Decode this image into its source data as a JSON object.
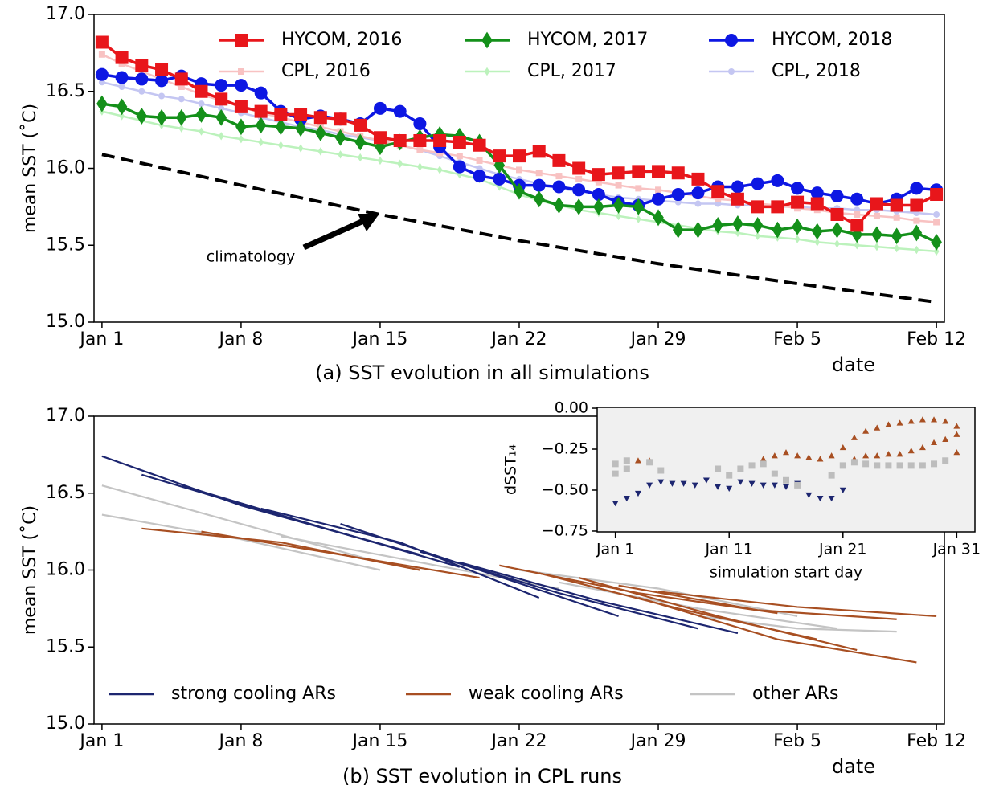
{
  "chart_data": [
    {
      "type": "line",
      "title": "(a) SST evolution in all simulations",
      "xlabel": "date",
      "ylabel": "mean SST (˚C)",
      "xlim": [
        -0.4,
        42.4
      ],
      "ylim": [
        15,
        17
      ],
      "xticks": [
        {
          "value": 0,
          "label": "Jan 1"
        },
        {
          "value": 7,
          "label": "Jan 8"
        },
        {
          "value": 14,
          "label": "Jan 15"
        },
        {
          "value": 21,
          "label": "Jan 22"
        },
        {
          "value": 28,
          "label": "Jan 29"
        },
        {
          "value": 35,
          "label": "Feb 5"
        },
        {
          "value": 42,
          "label": "Feb 12"
        }
      ],
      "yticks": [
        {
          "value": 15,
          "label": "15.0"
        },
        15.5,
        {
          "value": 16,
          "label": "16.0"
        },
        16.5,
        {
          "value": 17,
          "label": "17.0"
        }
      ],
      "legend": "upper center",
      "x": [
        0,
        1,
        2,
        3,
        4,
        5,
        6,
        7,
        8,
        9,
        10,
        11,
        12,
        13,
        14,
        15,
        16,
        17,
        18,
        19,
        20,
        21,
        22,
        23,
        24,
        25,
        26,
        27,
        28,
        29,
        30,
        31,
        32,
        33,
        34,
        35,
        36,
        37,
        38,
        39,
        40,
        41,
        42
      ],
      "series": [
        {
          "name": "HYCOM, 2016",
          "color": "#e8161b",
          "marker": "s",
          "values": [
            16.82,
            16.72,
            16.67,
            16.64,
            16.58,
            16.5,
            16.45,
            16.4,
            16.37,
            16.35,
            16.35,
            16.33,
            16.32,
            16.28,
            16.2,
            16.18,
            16.18,
            16.18,
            16.17,
            16.15,
            16.08,
            16.08,
            16.11,
            16.05,
            16.0,
            15.96,
            15.97,
            15.98,
            15.98,
            15.97,
            15.93,
            15.85,
            15.8,
            15.75,
            15.75,
            15.78,
            15.77,
            15.7,
            15.63,
            15.77,
            15.76,
            15.76,
            15.83
          ]
        },
        {
          "name": "HYCOM, 2017",
          "color": "#14901a",
          "marker": "D",
          "values": [
            16.42,
            16.4,
            16.34,
            16.33,
            16.33,
            16.35,
            16.33,
            16.27,
            16.28,
            16.27,
            16.26,
            16.23,
            16.2,
            16.17,
            16.14,
            16.17,
            16.2,
            16.22,
            16.21,
            16.17,
            16.02,
            15.85,
            15.8,
            15.76,
            15.75,
            15.75,
            15.76,
            15.75,
            15.68,
            15.6,
            15.6,
            15.63,
            15.64,
            15.63,
            15.6,
            15.62,
            15.59,
            15.6,
            15.57,
            15.57,
            15.56,
            15.58,
            15.52
          ]
        },
        {
          "name": "HYCOM, 2018",
          "color": "#0d17e3",
          "marker": "o",
          "values": [
            16.61,
            16.59,
            16.58,
            16.57,
            16.6,
            16.55,
            16.54,
            16.54,
            16.49,
            16.37,
            16.32,
            16.34,
            16.32,
            16.29,
            16.39,
            16.37,
            16.29,
            16.14,
            16.01,
            15.95,
            15.93,
            15.89,
            15.89,
            15.88,
            15.86,
            15.83,
            15.78,
            15.76,
            15.8,
            15.83,
            15.84,
            15.88,
            15.88,
            15.9,
            15.92,
            15.87,
            15.84,
            15.82,
            15.8,
            15.77,
            15.8,
            15.87,
            15.86
          ]
        },
        {
          "name": "CPL, 2016",
          "color": "#f8c2c2",
          "marker": "s",
          "values": [
            16.74,
            16.68,
            16.63,
            16.58,
            16.53,
            16.48,
            16.44,
            16.4,
            16.36,
            16.33,
            16.3,
            16.27,
            16.24,
            16.21,
            16.18,
            16.15,
            16.12,
            16.1,
            16.08,
            16.05,
            16.02,
            15.99,
            15.97,
            15.95,
            15.93,
            15.91,
            15.89,
            15.87,
            15.86,
            15.84,
            15.82,
            15.8,
            15.79,
            15.77,
            15.76,
            15.74,
            15.73,
            15.71,
            15.7,
            15.69,
            15.68,
            15.66,
            15.65
          ]
        },
        {
          "name": "CPL, 2017",
          "color": "#bcf2bc",
          "marker": "D",
          "values": [
            16.37,
            16.34,
            16.31,
            16.28,
            16.26,
            16.24,
            16.21,
            16.19,
            16.17,
            16.15,
            16.13,
            16.11,
            16.09,
            16.07,
            16.05,
            16.03,
            16.01,
            15.99,
            15.96,
            15.93,
            15.88,
            15.83,
            15.79,
            15.76,
            15.73,
            15.71,
            15.69,
            15.67,
            15.65,
            15.63,
            15.61,
            15.59,
            15.58,
            15.56,
            15.55,
            15.54,
            15.52,
            15.51,
            15.5,
            15.49,
            15.48,
            15.47,
            15.46
          ]
        },
        {
          "name": "CPL, 2018",
          "color": "#c4c6f2",
          "marker": "o",
          "values": [
            16.56,
            16.53,
            16.5,
            16.47,
            16.45,
            16.42,
            16.39,
            16.36,
            16.33,
            16.3,
            16.27,
            16.25,
            16.22,
            16.2,
            16.18,
            16.15,
            16.12,
            16.08,
            16.04,
            16.0,
            15.96,
            15.93,
            15.9,
            15.87,
            15.85,
            15.83,
            15.81,
            15.8,
            15.79,
            15.78,
            15.77,
            15.77,
            15.76,
            15.76,
            15.75,
            15.75,
            15.74,
            15.74,
            15.73,
            15.73,
            15.72,
            15.71,
            15.7
          ]
        }
      ],
      "climatology": {
        "label": "climatology",
        "x": [
          0,
          7,
          14,
          21,
          28,
          35,
          42
        ],
        "values": [
          16.09,
          15.89,
          15.7,
          15.53,
          15.38,
          15.25,
          15.13
        ]
      }
    },
    {
      "type": "line",
      "title": "(b) SST evolution in CPL runs",
      "xlabel": "date",
      "ylabel": "mean SST (˚C)",
      "xlim": [
        -0.4,
        42.4
      ],
      "ylim": [
        15,
        17
      ],
      "xticks": [
        {
          "value": 0,
          "label": "Jan 1"
        },
        {
          "value": 7,
          "label": "Jan 8"
        },
        {
          "value": 14,
          "label": "Jan 15"
        },
        {
          "value": 21,
          "label": "Jan 22"
        },
        {
          "value": 28,
          "label": "Jan 29"
        },
        {
          "value": 35,
          "label": "Feb 5"
        },
        {
          "value": 42,
          "label": "Feb 12"
        }
      ],
      "yticks": [
        {
          "value": 15,
          "label": "15.0"
        },
        15.5,
        {
          "value": 16,
          "label": "16.0"
        },
        16.5,
        {
          "value": 17,
          "label": "17.0"
        }
      ],
      "legend": "lower center",
      "series": [
        {
          "name": "strong cooling ARs",
          "color": "#1d2670",
          "runs": [
            {
              "x": [
                0,
                7,
                14
              ],
              "values": [
                16.74,
                16.42,
                16.17
              ]
            },
            {
              "x": [
                2,
                9,
                16
              ],
              "values": [
                16.62,
                16.35,
                16.1
              ]
            },
            {
              "x": [
                4,
                11,
                18
              ],
              "values": [
                16.55,
                16.28,
                16.02
              ]
            },
            {
              "x": [
                8,
                15,
                22
              ],
              "values": [
                16.4,
                16.18,
                15.82
              ]
            },
            {
              "x": [
                12,
                19,
                26
              ],
              "values": [
                16.3,
                16.0,
                15.7
              ]
            },
            {
              "x": [
                16,
                23,
                30
              ],
              "values": [
                16.12,
                15.85,
                15.62
              ]
            },
            {
              "x": [
                18,
                25,
                32
              ],
              "values": [
                16.05,
                15.8,
                15.59
              ]
            }
          ]
        },
        {
          "name": "weak cooling ARs",
          "color": "#a84f22",
          "runs": [
            {
              "x": [
                2,
                9,
                16
              ],
              "values": [
                16.27,
                16.18,
                16.0
              ]
            },
            {
              "x": [
                5,
                12,
                19
              ],
              "values": [
                16.25,
                16.1,
                15.95
              ]
            },
            {
              "x": [
                20,
                27,
                34
              ],
              "values": [
                16.03,
                15.85,
                15.72
              ]
            },
            {
              "x": [
                22,
                29,
                36
              ],
              "values": [
                15.98,
                15.75,
                15.55
              ]
            },
            {
              "x": [
                24,
                31,
                38
              ],
              "values": [
                15.95,
                15.7,
                15.48
              ]
            },
            {
              "x": [
                26,
                33,
                40
              ],
              "values": [
                15.9,
                15.74,
                15.68
              ]
            },
            {
              "x": [
                28,
                35,
                42
              ],
              "values": [
                15.86,
                15.76,
                15.7
              ]
            },
            {
              "x": [
                27,
                34,
                41
              ],
              "values": [
                15.82,
                15.55,
                15.4
              ]
            }
          ]
        },
        {
          "name": "other ARs",
          "color": "#c4c4c4",
          "runs": [
            {
              "x": [
                0,
                7,
                14
              ],
              "values": [
                16.55,
                16.3,
                16.05
              ]
            },
            {
              "x": [
                0,
                7,
                14
              ],
              "values": [
                16.36,
                16.2,
                16.0
              ]
            },
            {
              "x": [
                9,
                16,
                23
              ],
              "values": [
                16.22,
                16.05,
                15.88
              ]
            },
            {
              "x": [
                21,
                28,
                35
              ],
              "values": [
                16.0,
                15.88,
                15.7
              ]
            },
            {
              "x": [
                23,
                30,
                37
              ],
              "values": [
                15.92,
                15.75,
                15.62
              ]
            },
            {
              "x": [
                30,
                35,
                40
              ],
              "values": [
                15.7,
                15.62,
                15.6
              ]
            }
          ]
        }
      ]
    },
    {
      "type": "scatter",
      "xlabel": "simulation start day",
      "ylabel": "dSST₁₄",
      "xlim": [
        -1.6,
        31.6
      ],
      "ylim": [
        -0.755,
        0.005
      ],
      "background": "#f0f0f0",
      "xticks": [
        {
          "value": 0,
          "label": "Jan 1"
        },
        {
          "value": 10,
          "label": "Jan 11"
        },
        {
          "value": 20,
          "label": "Jan 21"
        },
        {
          "value": 30,
          "label": "Jan 31"
        }
      ],
      "yticks": [
        {
          "value": 0,
          "label": "0.00"
        },
        {
          "value": -0.25,
          "label": "−0.25"
        },
        {
          "value": -0.5,
          "label": "−0.50"
        },
        {
          "value": -0.75,
          "label": "−0.75"
        }
      ],
      "series": [
        {
          "color": "#1d2670",
          "marker": "v",
          "x": [
            0,
            1,
            2,
            3,
            4,
            5,
            6,
            7,
            8,
            9,
            10,
            11,
            12,
            13,
            14,
            15,
            16,
            17,
            18,
            19,
            20
          ],
          "values": [
            -0.58,
            -0.55,
            -0.52,
            -0.47,
            -0.45,
            -0.46,
            -0.46,
            -0.47,
            -0.44,
            -0.48,
            -0.49,
            -0.45,
            -0.46,
            -0.47,
            -0.47,
            -0.48,
            -0.46,
            -0.53,
            -0.55,
            -0.55,
            -0.5
          ]
        },
        {
          "color": "#a84f22",
          "marker": "^",
          "x": [
            2,
            3,
            13,
            14,
            15,
            16,
            17,
            18,
            19,
            20,
            21,
            22,
            23,
            24,
            25,
            26,
            27,
            28,
            29,
            30,
            21,
            22,
            23,
            24,
            25,
            26,
            27,
            28,
            29,
            30,
            30
          ],
          "values": [
            -0.32,
            -0.32,
            -0.31,
            -0.29,
            -0.27,
            -0.29,
            -0.3,
            -0.31,
            -0.29,
            -0.24,
            -0.18,
            -0.14,
            -0.12,
            -0.1,
            -0.09,
            -0.08,
            -0.07,
            -0.07,
            -0.08,
            -0.11,
            -0.31,
            -0.29,
            -0.29,
            -0.28,
            -0.28,
            -0.26,
            -0.24,
            -0.21,
            -0.19,
            -0.16,
            -0.27
          ]
        },
        {
          "color": "#bdbdbd",
          "marker": "s",
          "x": [
            0,
            0,
            1,
            1,
            3,
            4,
            9,
            10,
            11,
            12,
            13,
            14,
            15,
            16,
            19,
            20,
            21,
            22,
            23,
            24,
            25,
            26,
            27,
            28,
            29
          ],
          "values": [
            -0.34,
            -0.4,
            -0.32,
            -0.37,
            -0.33,
            -0.38,
            -0.37,
            -0.41,
            -0.37,
            -0.35,
            -0.34,
            -0.4,
            -0.44,
            -0.47,
            -0.41,
            -0.35,
            -0.33,
            -0.34,
            -0.35,
            -0.35,
            -0.35,
            -0.35,
            -0.35,
            -0.34,
            -0.32
          ]
        }
      ]
    }
  ]
}
